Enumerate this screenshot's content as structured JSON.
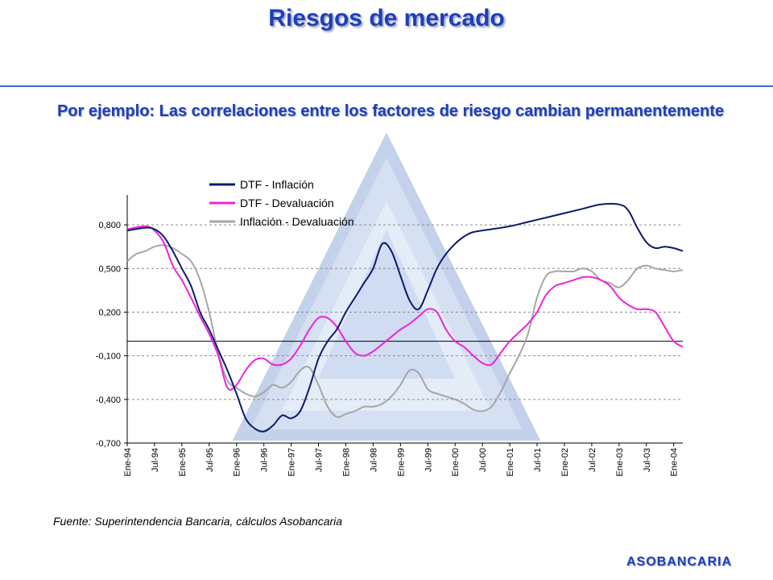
{
  "header": {
    "title": "Riesgos de mercado",
    "subtitle": "Por ejemplo: Las correlaciones entre los factores de riesgo cambian permanentemente"
  },
  "footer": {
    "source": "Fuente: Superintendencia Bancaria, cálculos Asobancaria",
    "brand": "ASOBANCARIA"
  },
  "colors": {
    "title": "#1f3fb8",
    "rule": "#3e6ad2",
    "watermark": "#b8c8e8"
  },
  "chart_data": {
    "type": "line",
    "categories": [
      "Ene-94",
      "Jul-94",
      "Ene-95",
      "Jul-95",
      "Ene-96",
      "Jul-96",
      "Ene-97",
      "Jul-97",
      "Ene-98",
      "Jul-98",
      "Ene-99",
      "Jul-99",
      "Ene-00",
      "Jul-00",
      "Ene-01",
      "Jul-01",
      "Ene-02",
      "Jul-02",
      "Ene-03",
      "Jul-03",
      "Ene-04"
    ],
    "yticks": [
      "0,800",
      "0,500",
      "0,200",
      "-0,100",
      "-0,400",
      "-0,700"
    ],
    "ylim": [
      -0.7,
      0.95
    ],
    "reference_line": 0.0,
    "grid": "horizontal-dashed",
    "legend_position": "top-center",
    "series": [
      {
        "name": "DTF - Inflación",
        "color": "#0b1a6e",
        "values": [
          [
            0,
            0.76
          ],
          [
            1,
            0.78
          ],
          [
            1.5,
            0.77
          ],
          [
            2,
            0.72
          ],
          [
            2.5,
            0.62
          ],
          [
            3,
            0.5
          ],
          [
            3.5,
            0.38
          ],
          [
            4,
            0.2
          ],
          [
            4.5,
            0.08
          ],
          [
            5,
            -0.06
          ],
          [
            5.5,
            -0.2
          ],
          [
            6,
            -0.36
          ],
          [
            6.5,
            -0.53
          ],
          [
            7,
            -0.6
          ],
          [
            7.5,
            -0.62
          ],
          [
            8,
            -0.58
          ],
          [
            8.5,
            -0.51
          ],
          [
            9,
            -0.53
          ],
          [
            9.5,
            -0.48
          ],
          [
            10,
            -0.32
          ],
          [
            10.5,
            -0.12
          ],
          [
            11,
            0.0
          ],
          [
            11.5,
            0.08
          ],
          [
            12,
            0.2
          ],
          [
            12.5,
            0.3
          ],
          [
            13,
            0.4
          ],
          [
            13.5,
            0.5
          ],
          [
            14,
            0.67
          ],
          [
            14.5,
            0.62
          ],
          [
            15,
            0.45
          ],
          [
            15.5,
            0.28
          ],
          [
            16,
            0.22
          ],
          [
            16.5,
            0.35
          ],
          [
            17,
            0.5
          ],
          [
            17.5,
            0.6
          ],
          [
            18,
            0.67
          ],
          [
            18.5,
            0.72
          ],
          [
            19,
            0.75
          ],
          [
            20,
            0.77
          ],
          [
            21,
            0.79
          ],
          [
            22,
            0.82
          ],
          [
            23,
            0.85
          ],
          [
            24,
            0.88
          ],
          [
            25,
            0.91
          ],
          [
            26,
            0.94
          ],
          [
            27,
            0.94
          ],
          [
            27.5,
            0.9
          ],
          [
            28,
            0.78
          ],
          [
            28.5,
            0.68
          ],
          [
            29,
            0.64
          ],
          [
            29.5,
            0.65
          ],
          [
            30,
            0.64
          ],
          [
            30.5,
            0.62
          ]
        ]
      },
      {
        "name": "DTF - Devaluación",
        "color": "#ee22dd",
        "values": [
          [
            0,
            0.77
          ],
          [
            1,
            0.79
          ],
          [
            1.5,
            0.76
          ],
          [
            2,
            0.68
          ],
          [
            2.5,
            0.52
          ],
          [
            3,
            0.42
          ],
          [
            3.5,
            0.3
          ],
          [
            4,
            0.17
          ],
          [
            4.5,
            0.05
          ],
          [
            5,
            -0.1
          ],
          [
            5.5,
            -0.32
          ],
          [
            6,
            -0.3
          ],
          [
            6.5,
            -0.2
          ],
          [
            7,
            -0.13
          ],
          [
            7.5,
            -0.12
          ],
          [
            8,
            -0.16
          ],
          [
            8.5,
            -0.16
          ],
          [
            9,
            -0.12
          ],
          [
            9.5,
            -0.03
          ],
          [
            10,
            0.08
          ],
          [
            10.5,
            0.16
          ],
          [
            11,
            0.16
          ],
          [
            11.5,
            0.1
          ],
          [
            12,
            0.0
          ],
          [
            12.5,
            -0.08
          ],
          [
            13,
            -0.1
          ],
          [
            13.5,
            -0.07
          ],
          [
            14,
            -0.02
          ],
          [
            14.5,
            0.03
          ],
          [
            15,
            0.08
          ],
          [
            15.5,
            0.12
          ],
          [
            16,
            0.17
          ],
          [
            16.5,
            0.22
          ],
          [
            17,
            0.2
          ],
          [
            17.5,
            0.08
          ],
          [
            18,
            0.0
          ],
          [
            18.5,
            -0.04
          ],
          [
            19,
            -0.1
          ],
          [
            19.5,
            -0.15
          ],
          [
            20,
            -0.16
          ],
          [
            20.5,
            -0.08
          ],
          [
            21,
            0.0
          ],
          [
            21.5,
            0.06
          ],
          [
            22,
            0.12
          ],
          [
            22.5,
            0.2
          ],
          [
            23,
            0.32
          ],
          [
            23.5,
            0.38
          ],
          [
            24,
            0.4
          ],
          [
            24.5,
            0.42
          ],
          [
            25,
            0.44
          ],
          [
            25.5,
            0.44
          ],
          [
            26,
            0.42
          ],
          [
            26.5,
            0.38
          ],
          [
            27,
            0.3
          ],
          [
            27.5,
            0.25
          ],
          [
            28,
            0.22
          ],
          [
            28.5,
            0.22
          ],
          [
            29,
            0.2
          ],
          [
            29.5,
            0.1
          ],
          [
            30,
            0.0
          ],
          [
            30.5,
            -0.04
          ]
        ]
      },
      {
        "name": "Inflación - Devaluación",
        "color": "#a6a6a6",
        "values": [
          [
            0,
            0.55
          ],
          [
            0.5,
            0.6
          ],
          [
            1,
            0.62
          ],
          [
            1.5,
            0.65
          ],
          [
            2,
            0.66
          ],
          [
            2.5,
            0.64
          ],
          [
            3,
            0.6
          ],
          [
            3.5,
            0.55
          ],
          [
            4,
            0.42
          ],
          [
            4.5,
            0.2
          ],
          [
            5,
            -0.08
          ],
          [
            5.5,
            -0.27
          ],
          [
            6,
            -0.32
          ],
          [
            6.5,
            -0.36
          ],
          [
            7,
            -0.38
          ],
          [
            7.5,
            -0.35
          ],
          [
            8,
            -0.3
          ],
          [
            8.5,
            -0.32
          ],
          [
            9,
            -0.28
          ],
          [
            9.5,
            -0.2
          ],
          [
            10,
            -0.18
          ],
          [
            10.5,
            -0.3
          ],
          [
            11,
            -0.45
          ],
          [
            11.5,
            -0.52
          ],
          [
            12,
            -0.5
          ],
          [
            12.5,
            -0.48
          ],
          [
            13,
            -0.45
          ],
          [
            13.5,
            -0.45
          ],
          [
            14,
            -0.43
          ],
          [
            14.5,
            -0.38
          ],
          [
            15,
            -0.3
          ],
          [
            15.5,
            -0.2
          ],
          [
            16,
            -0.22
          ],
          [
            16.5,
            -0.33
          ],
          [
            17,
            -0.36
          ],
          [
            17.5,
            -0.38
          ],
          [
            18,
            -0.4
          ],
          [
            18.5,
            -0.43
          ],
          [
            19,
            -0.47
          ],
          [
            19.5,
            -0.48
          ],
          [
            20,
            -0.45
          ],
          [
            20.5,
            -0.35
          ],
          [
            21,
            -0.22
          ],
          [
            21.5,
            -0.1
          ],
          [
            22,
            0.05
          ],
          [
            22.5,
            0.3
          ],
          [
            23,
            0.45
          ],
          [
            23.5,
            0.48
          ],
          [
            24,
            0.48
          ],
          [
            24.5,
            0.48
          ],
          [
            25,
            0.5
          ],
          [
            25.5,
            0.48
          ],
          [
            26,
            0.42
          ],
          [
            26.5,
            0.4
          ],
          [
            27,
            0.37
          ],
          [
            27.5,
            0.42
          ],
          [
            28,
            0.5
          ],
          [
            28.5,
            0.52
          ],
          [
            29,
            0.5
          ],
          [
            29.5,
            0.49
          ],
          [
            30,
            0.48
          ],
          [
            30.5,
            0.49
          ]
        ]
      }
    ]
  }
}
